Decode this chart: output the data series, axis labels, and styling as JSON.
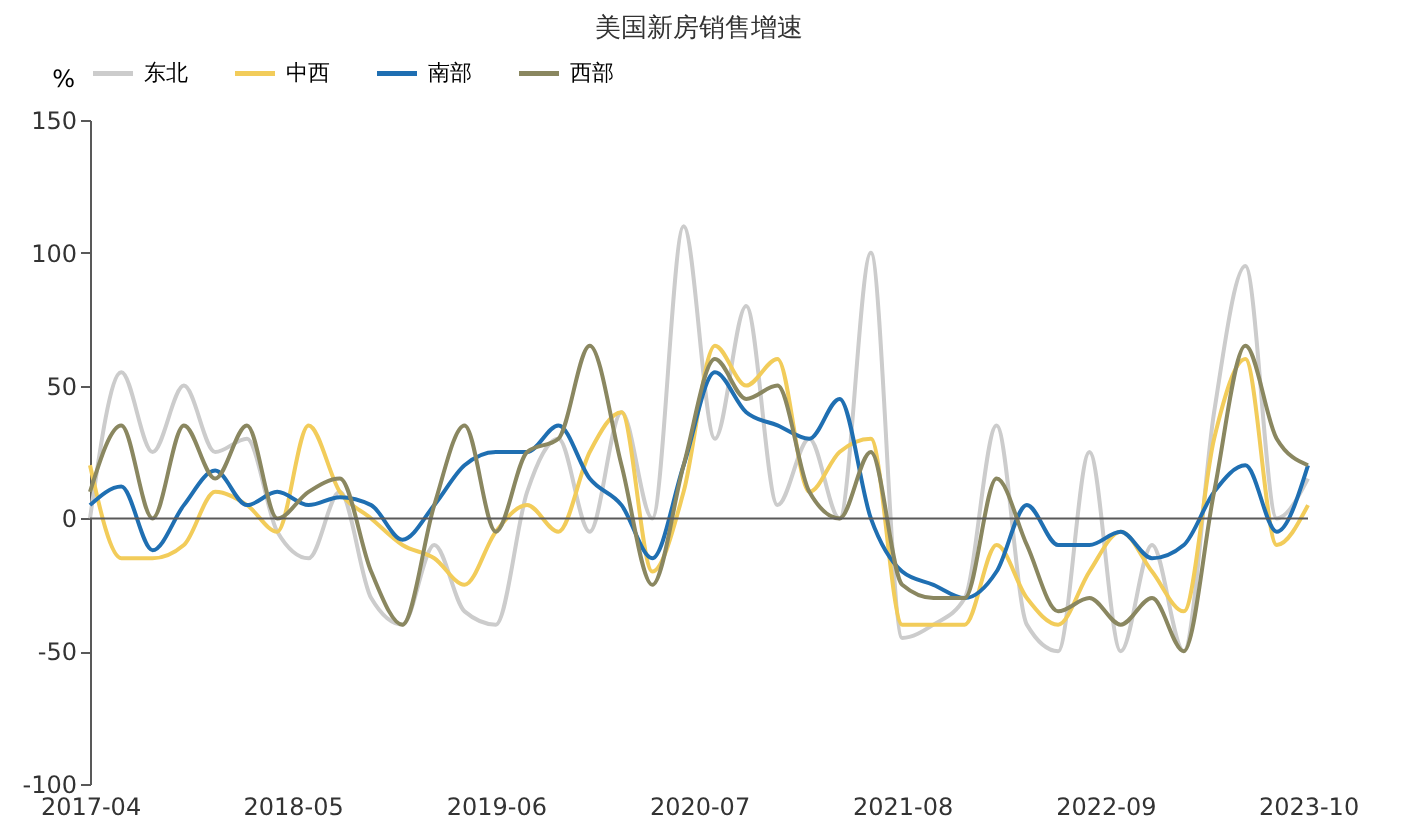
{
  "chart_data": {
    "type": "line",
    "title": "美国新房销售增速",
    "ylabel": "%",
    "x": [
      "2017-04",
      "2017-06",
      "2017-08",
      "2017-10",
      "2017-12",
      "2018-02",
      "2018-04",
      "2018-06",
      "2018-08",
      "2018-10",
      "2018-12",
      "2019-02",
      "2019-04",
      "2019-06",
      "2019-08",
      "2019-10",
      "2019-12",
      "2020-02",
      "2020-04",
      "2020-06",
      "2020-08",
      "2020-10",
      "2020-12",
      "2021-02",
      "2021-04",
      "2021-06",
      "2021-08",
      "2021-10",
      "2021-12",
      "2022-02",
      "2022-04",
      "2022-06",
      "2022-08",
      "2022-10",
      "2022-12",
      "2023-02",
      "2023-04",
      "2023-06",
      "2023-08",
      "2023-10"
    ],
    "series": [
      {
        "name": "东北",
        "color": "#cccccc",
        "values": [
          0,
          55,
          25,
          50,
          25,
          30,
          -5,
          -15,
          10,
          -30,
          -40,
          -10,
          -35,
          -40,
          10,
          30,
          -5,
          40,
          0,
          110,
          30,
          80,
          5,
          30,
          0,
          100,
          -45,
          -40,
          -30,
          35,
          -40,
          -50,
          25,
          -50,
          -10,
          -50,
          40,
          95,
          0,
          15
        ]
      },
      {
        "name": "中西",
        "color": "#f2cc5a",
        "values": [
          20,
          -15,
          -15,
          -10,
          10,
          5,
          -5,
          35,
          10,
          0,
          -10,
          -15,
          -25,
          -5,
          5,
          -5,
          25,
          40,
          -20,
          10,
          65,
          50,
          60,
          10,
          25,
          30,
          -40,
          -40,
          -40,
          -10,
          -30,
          -40,
          -20,
          -5,
          -20,
          -35,
          30,
          60,
          -10,
          5
        ]
      },
      {
        "name": "南部",
        "color": "#1f6fb2",
        "values": [
          5,
          12,
          -12,
          5,
          18,
          5,
          10,
          5,
          8,
          5,
          -8,
          5,
          20,
          25,
          25,
          35,
          15,
          5,
          -15,
          20,
          55,
          40,
          35,
          30,
          45,
          0,
          -20,
          -25,
          -30,
          -20,
          5,
          -10,
          -10,
          -5,
          -15,
          -10,
          10,
          20,
          -5,
          20
        ]
      },
      {
        "name": "西部",
        "color": "#8a8760",
        "values": [
          10,
          35,
          0,
          35,
          15,
          35,
          0,
          10,
          15,
          -20,
          -40,
          5,
          35,
          -5,
          25,
          30,
          65,
          20,
          -25,
          20,
          60,
          45,
          50,
          10,
          0,
          25,
          -25,
          -30,
          -30,
          15,
          -10,
          -35,
          -30,
          -40,
          -30,
          -50,
          10,
          65,
          30,
          20
        ]
      }
    ],
    "xlim": [
      "2017-04",
      "2023-10"
    ],
    "xticks": [
      "2017-04",
      "2018-05",
      "2019-06",
      "2020-07",
      "2021-08",
      "2022-09",
      "2023-10"
    ],
    "ylim": [
      -100,
      150
    ],
    "yticks": [
      -100,
      -50,
      0,
      50,
      100,
      150
    ],
    "ref_lines": [
      {
        "axis": "y",
        "value": 0,
        "color": "#595959"
      }
    ],
    "grid": false,
    "legend": "top",
    "marker": "none",
    "line_style": "solid"
  }
}
